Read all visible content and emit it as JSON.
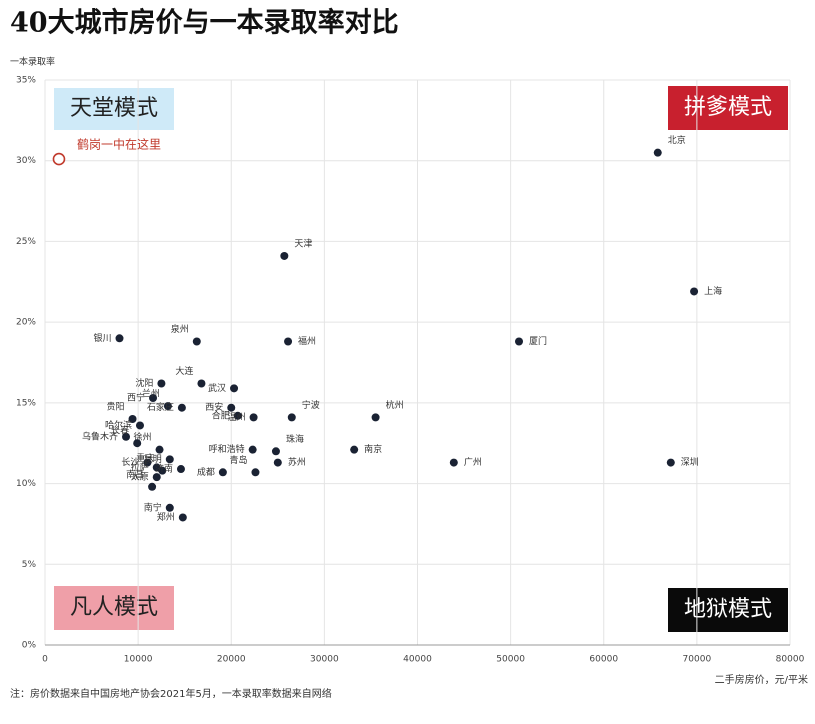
{
  "chart_data": {
    "type": "scatter",
    "title": "40大城市房价与一本录取率对比",
    "y_label": "一本录取率",
    "x_label": "二手房房价，元/平米",
    "note": "注：房价数据来自中国房地产协会2021年5月，一本录取率数据来自网络",
    "quadrants": {
      "top_left": "天堂模式",
      "top_right": "拼爹模式",
      "bottom_left": "凡人模式",
      "bottom_right": "地狱模式"
    },
    "xlim": [
      0,
      80000
    ],
    "xticks": [
      0,
      10000,
      20000,
      30000,
      40000,
      50000,
      60000,
      70000,
      80000
    ],
    "ylim": [
      0,
      35
    ],
    "yticks": [
      {
        "value": 0,
        "label": "0%"
      },
      {
        "value": 5,
        "label": "5%"
      },
      {
        "value": 10,
        "label": "10%"
      },
      {
        "value": 15,
        "label": "15%"
      },
      {
        "value": 20,
        "label": "20%"
      },
      {
        "value": 25,
        "label": "25%"
      },
      {
        "value": 30,
        "label": "30%"
      },
      {
        "value": 35,
        "label": "35%"
      }
    ],
    "grid": true,
    "color": "#1a2233",
    "labels": [
      "北京",
      "上海",
      "深圳",
      "天津",
      "福州",
      "厦门",
      "杭州",
      "南京",
      "广州",
      "泉州",
      "银川",
      "沈阳",
      "大连",
      "武汉",
      "西宁",
      "兰州",
      "西安",
      "合肥",
      "贵阳",
      "石家庄",
      "哈尔滨",
      "宁波",
      "温州",
      "乌鲁木齐",
      "徐州",
      "呼和浩特",
      "苏州",
      "长春",
      "长沙",
      "拉萨",
      "南昌",
      "太原",
      "昆明",
      "重庆",
      "济南",
      "成都",
      "青岛",
      "郑州",
      "南宁",
      "珠海"
    ],
    "x": [
      65800,
      69700,
      67200,
      25700,
      26100,
      50900,
      35500,
      33200,
      43900,
      16300,
      8000,
      12500,
      16800,
      20300,
      11600,
      13200,
      20000,
      20700,
      9400,
      14700,
      10200,
      26500,
      22400,
      8700,
      12300,
      22300,
      25000,
      9900,
      11000,
      12000,
      11500,
      12000,
      13400,
      12600,
      14600,
      19100,
      22600,
      14800,
      13400,
      24800
    ],
    "values": [
      30.5,
      21.9,
      11.3,
      24.1,
      18.8,
      18.8,
      14.1,
      12.1,
      11.3,
      18.8,
      19.0,
      16.2,
      16.2,
      15.9,
      15.3,
      14.8,
      14.7,
      14.2,
      14.0,
      14.7,
      13.6,
      14.1,
      14.1,
      12.9,
      12.1,
      12.1,
      11.3,
      12.5,
      11.3,
      11.0,
      9.8,
      10.4,
      11.5,
      10.8,
      10.9,
      10.7,
      10.7,
      7.9,
      8.5,
      12.0
    ],
    "highlight": {
      "label": "鹤岗一中在这里",
      "x": 1500,
      "y": 30.1,
      "color": "#c0392b"
    }
  }
}
